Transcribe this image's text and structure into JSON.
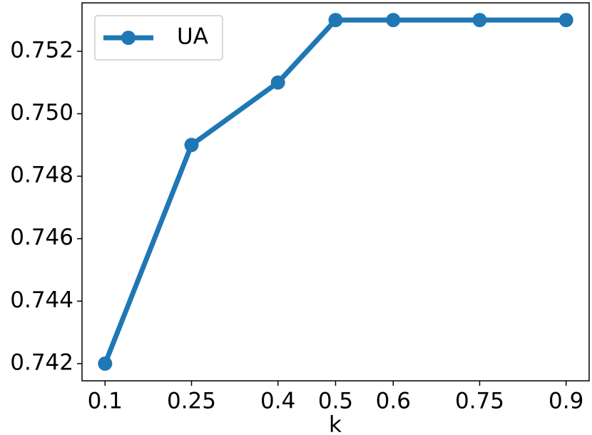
{
  "chart_data": {
    "type": "line",
    "x_label": "k",
    "x": [
      0.1,
      0.25,
      0.4,
      0.5,
      0.6,
      0.75,
      0.9
    ],
    "series": [
      {
        "name": "UA",
        "color": "#1f77b4",
        "values": [
          0.742,
          0.749,
          0.751,
          0.753,
          0.753,
          0.753,
          0.753
        ]
      }
    ],
    "xlim": [
      0.06,
      0.94
    ],
    "ylim": [
      0.74145,
      0.75355
    ],
    "xticks": [
      0.1,
      0.25,
      0.4,
      0.5,
      0.6,
      0.75,
      0.9
    ],
    "yticks": [
      0.742,
      0.744,
      0.746,
      0.748,
      {
        "value": 0.75,
        "label": "0.750"
      },
      0.752
    ],
    "grid": false,
    "legend": "upper left"
  }
}
